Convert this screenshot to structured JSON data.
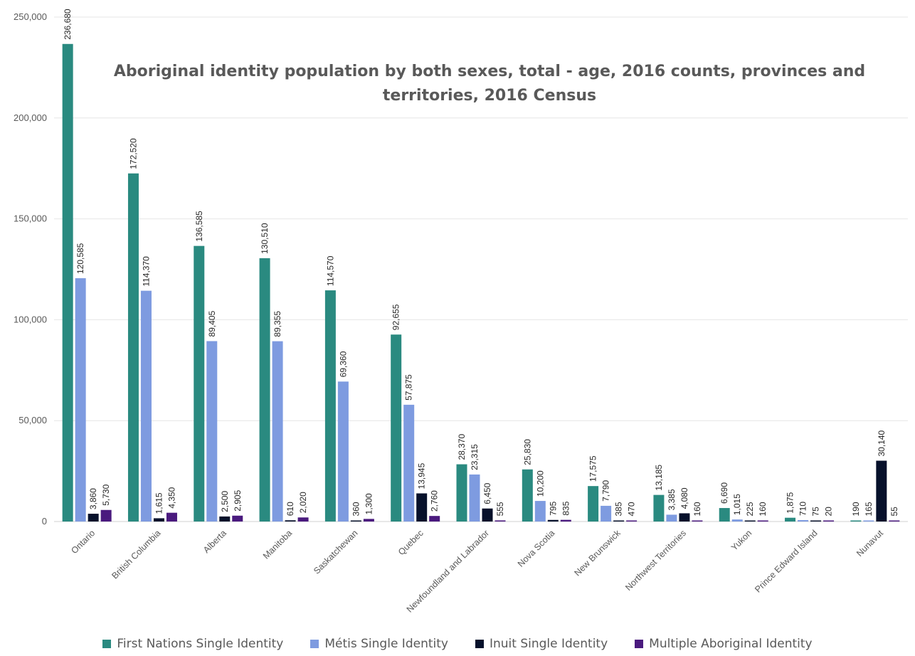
{
  "chart_data": {
    "type": "bar",
    "title": "Aboriginal identity population by both sexes, total - age, 2016 counts, provinces and territories, 2016 Census",
    "title_lines": [
      "Aboriginal identity population by both sexes, total - age, 2016 counts, provinces and",
      "territories, 2016 Census"
    ],
    "xlabel": "",
    "ylabel": "",
    "ylim": [
      0,
      250000
    ],
    "yticks": [
      0,
      50000,
      100000,
      150000,
      200000,
      250000
    ],
    "ytick_labels": [
      "0",
      "50,000",
      "100,000",
      "150,000",
      "200,000",
      "250,000"
    ],
    "grid": true,
    "legend_position": "bottom",
    "categories": [
      "Ontario",
      "British Columbia",
      "Alberta",
      "Manitoba",
      "Saskatchewan",
      "Quebec",
      "Newfoundland and Labrador",
      "Nova Scotia",
      "New Brunswick",
      "Northwest Territories",
      "Yukon",
      "Prince Edward Island",
      "Nunavut"
    ],
    "series": [
      {
        "name": "First Nations Single Identity",
        "color": "#2a8a80",
        "values": [
          236680,
          172520,
          136585,
          130510,
          114570,
          92655,
          28370,
          25830,
          17575,
          13185,
          6690,
          1875,
          190
        ],
        "labels": [
          "236,680",
          "172,520",
          "136,585",
          "130,510",
          "114,570",
          "92,655",
          "28,370",
          "25,830",
          "17,575",
          "13,185",
          "6,690",
          "1,875",
          "190"
        ]
      },
      {
        "name": "Métis Single Identity",
        "color": "#7e9be0",
        "values": [
          120585,
          114370,
          89405,
          89355,
          69360,
          57875,
          23315,
          10200,
          7790,
          3385,
          1015,
          710,
          165
        ],
        "labels": [
          "120,585",
          "114,370",
          "89,405",
          "89,355",
          "69,360",
          "57,875",
          "23,315",
          "10,200",
          "7,790",
          "3,385",
          "1,015",
          "710",
          "165"
        ]
      },
      {
        "name": "Inuit Single Identity",
        "color": "#07112b",
        "values": [
          3860,
          1615,
          2500,
          610,
          360,
          13945,
          6450,
          795,
          385,
          4080,
          225,
          75,
          30140
        ],
        "labels": [
          "3,860",
          "1,615",
          "2,500",
          "610",
          "360",
          "13,945",
          "6,450",
          "795",
          "385",
          "4,080",
          "225",
          "75",
          "30,140"
        ]
      },
      {
        "name": "Multiple Aboriginal Identity",
        "color": "#4a1a7e",
        "values": [
          5730,
          4350,
          2905,
          2020,
          1300,
          2760,
          555,
          835,
          470,
          160,
          160,
          20,
          55
        ],
        "labels": [
          "5,730",
          "4,350",
          "2,905",
          "2,020",
          "1,300",
          "2,760",
          "555",
          "835",
          "470",
          "160",
          "160",
          "20",
          "55"
        ]
      }
    ]
  }
}
